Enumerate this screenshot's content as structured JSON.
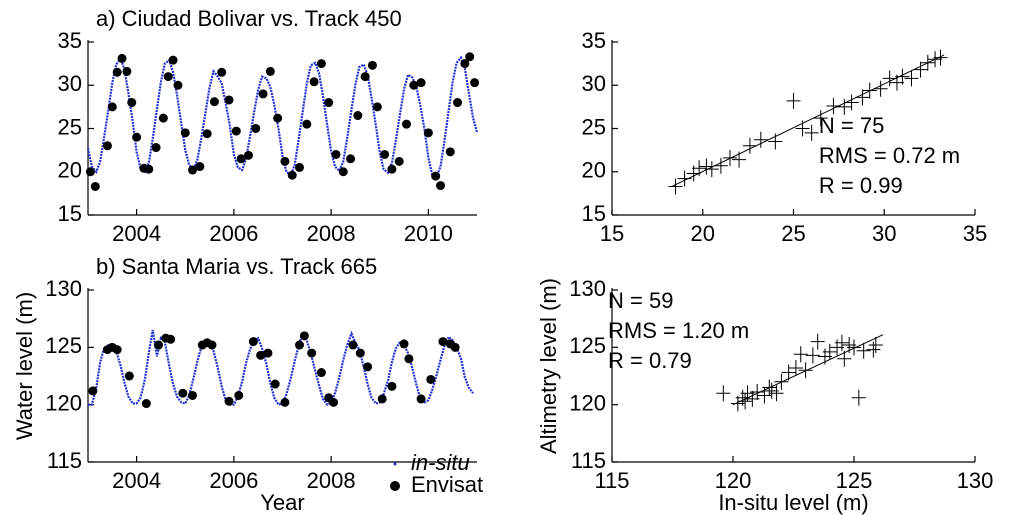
{
  "chart_data": [
    {
      "type": "timeseries",
      "title": "a) Ciudad Bolivar vs. Track 450",
      "xlim": [
        2003,
        2011
      ],
      "xticks": [
        2004,
        2006,
        2008,
        2010
      ],
      "ylim": [
        15,
        35
      ],
      "yticks": [
        15,
        20,
        25,
        30,
        35
      ],
      "series": [
        {
          "kind": "line",
          "color": "#1f2fd6",
          "x": [
            2003.0,
            2003.08,
            2003.17,
            2003.25,
            2003.33,
            2003.42,
            2003.5,
            2003.58,
            2003.67,
            2003.75,
            2003.83,
            2003.92,
            2004.0,
            2004.08,
            2004.17,
            2004.25,
            2004.33,
            2004.42,
            2004.5,
            2004.58,
            2004.67,
            2004.75,
            2004.83,
            2004.92,
            2005.0,
            2005.08,
            2005.17,
            2005.25,
            2005.33,
            2005.42,
            2005.5,
            2005.58,
            2005.67,
            2005.75,
            2005.83,
            2005.92,
            2006.0,
            2006.08,
            2006.17,
            2006.25,
            2006.33,
            2006.42,
            2006.5,
            2006.58,
            2006.67,
            2006.75,
            2006.83,
            2006.92,
            2007.0,
            2007.08,
            2007.17,
            2007.25,
            2007.33,
            2007.42,
            2007.5,
            2007.58,
            2007.67,
            2007.75,
            2007.83,
            2007.92,
            2008.0,
            2008.08,
            2008.17,
            2008.25,
            2008.33,
            2008.42,
            2008.5,
            2008.58,
            2008.67,
            2008.75,
            2008.83,
            2008.92,
            2009.0,
            2009.08,
            2009.17,
            2009.25,
            2009.33,
            2009.42,
            2009.5,
            2009.58,
            2009.67,
            2009.75,
            2009.83,
            2009.92,
            2010.0,
            2010.08,
            2010.17,
            2010.25,
            2010.33,
            2010.42,
            2010.5,
            2010.58,
            2010.67,
            2010.75,
            2010.83,
            2010.92,
            2011.0
          ],
          "values": [
            22.7,
            20.6,
            20.0,
            21.2,
            23.9,
            27.2,
            30.3,
            32.4,
            33.1,
            31.8,
            29.1,
            25.8,
            22.3,
            20.4,
            20.0,
            21.0,
            23.8,
            27.3,
            30.4,
            32.5,
            32.9,
            31.5,
            28.9,
            25.5,
            22.5,
            20.8,
            20.3,
            21.4,
            23.9,
            27.0,
            29.8,
            31.6,
            31.0,
            30.2,
            28.0,
            25.2,
            22.0,
            20.5,
            20.2,
            21.5,
            24.0,
            27.0,
            29.5,
            31.0,
            30.8,
            29.8,
            27.8,
            24.9,
            21.8,
            20.0,
            19.6,
            20.8,
            23.6,
            27.1,
            30.2,
            32.3,
            32.6,
            31.4,
            28.8,
            25.4,
            22.4,
            20.6,
            20.1,
            21.2,
            23.9,
            27.2,
            30.1,
            32.1,
            32.4,
            31.2,
            28.6,
            25.3,
            22.2,
            20.3,
            19.9,
            21.0,
            23.6,
            26.8,
            29.6,
            31.2,
            30.9,
            29.9,
            27.8,
            24.9,
            21.6,
            19.6,
            19.4,
            20.6,
            23.5,
            27.2,
            30.4,
            32.6,
            33.2,
            32.0,
            29.2,
            26.2,
            24.6
          ]
        },
        {
          "kind": "points",
          "color": "#000000",
          "x": [
            2003.05,
            2003.15,
            2003.4,
            2003.5,
            2003.6,
            2003.7,
            2003.8,
            2003.9,
            2004.0,
            2004.15,
            2004.25,
            2004.4,
            2004.55,
            2004.65,
            2004.75,
            2004.85,
            2005.0,
            2005.15,
            2005.3,
            2005.45,
            2005.6,
            2005.75,
            2005.9,
            2006.05,
            2006.15,
            2006.3,
            2006.45,
            2006.6,
            2006.75,
            2006.9,
            2007.05,
            2007.2,
            2007.35,
            2007.5,
            2007.65,
            2007.8,
            2007.95,
            2008.1,
            2008.25,
            2008.4,
            2008.55,
            2008.7,
            2008.85,
            2008.95,
            2009.1,
            2009.25,
            2009.4,
            2009.55,
            2009.7,
            2009.85,
            2010.0,
            2010.15,
            2010.25,
            2010.45,
            2010.6,
            2010.75,
            2010.85,
            2010.95
          ],
          "values": [
            20.0,
            18.3,
            23.0,
            27.5,
            31.5,
            33.1,
            31.6,
            28.0,
            24.0,
            20.4,
            20.3,
            22.8,
            26.2,
            31.0,
            32.9,
            30.0,
            24.5,
            20.2,
            20.6,
            24.4,
            28.1,
            31.5,
            28.3,
            24.7,
            21.5,
            21.9,
            25.0,
            29.0,
            31.6,
            26.2,
            21.2,
            19.6,
            20.5,
            25.5,
            30.4,
            32.5,
            28.0,
            22.0,
            20.0,
            21.5,
            26.5,
            31.0,
            32.3,
            27.5,
            22.0,
            20.3,
            21.2,
            25.5,
            30.0,
            30.3,
            24.5,
            19.5,
            18.4,
            22.3,
            28.0,
            32.5,
            33.3,
            30.3
          ]
        }
      ]
    },
    {
      "type": "timeseries",
      "title": "b) Santa Maria vs. Track 665",
      "xlabel": "Year",
      "ylabel": "Water level (m)",
      "legend": "lower right",
      "xlim": [
        2003,
        2011
      ],
      "xticks": [
        2004,
        2006,
        2008
      ],
      "ylim": [
        115,
        130
      ],
      "yticks": [
        115,
        120,
        125,
        130
      ],
      "series": [
        {
          "kind": "line",
          "name": "in-situ",
          "color": "#1f2fd6",
          "x": [
            2003.0,
            2003.08,
            2003.17,
            2003.25,
            2003.33,
            2003.42,
            2003.5,
            2003.58,
            2003.67,
            2003.75,
            2003.83,
            2003.92,
            2004.0,
            2004.08,
            2004.17,
            2004.25,
            2004.33,
            2004.42,
            2004.5,
            2004.58,
            2004.67,
            2004.75,
            2004.83,
            2004.92,
            2005.0,
            2005.08,
            2005.17,
            2005.25,
            2005.33,
            2005.42,
            2005.5,
            2005.58,
            2005.67,
            2005.75,
            2005.83,
            2005.92,
            2006.0,
            2006.08,
            2006.17,
            2006.25,
            2006.33,
            2006.42,
            2006.5,
            2006.58,
            2006.67,
            2006.75,
            2006.83,
            2006.92,
            2007.0,
            2007.08,
            2007.17,
            2007.25,
            2007.33,
            2007.42,
            2007.5,
            2007.58,
            2007.67,
            2007.75,
            2007.83,
            2007.92,
            2008.0,
            2008.08,
            2008.17,
            2008.25,
            2008.33,
            2008.42,
            2008.5,
            2008.58,
            2008.67,
            2008.75,
            2008.83,
            2008.92,
            2009.0,
            2009.08,
            2009.17,
            2009.25,
            2009.33,
            2009.42,
            2009.5,
            2009.58,
            2009.67,
            2009.75,
            2009.83,
            2009.92,
            2010.0,
            2010.08,
            2010.17,
            2010.25,
            2010.33,
            2010.42,
            2010.5,
            2010.58,
            2010.67,
            2010.75,
            2010.83,
            2010.92
          ],
          "values": [
            120.0,
            120.0,
            121.5,
            123.7,
            124.9,
            125.2,
            125.3,
            124.7,
            123.4,
            121.9,
            120.7,
            120.1,
            120.1,
            120.6,
            122.2,
            124.5,
            126.5,
            124.2,
            125.8,
            125.5,
            123.4,
            121.8,
            120.7,
            120.2,
            120.1,
            120.8,
            122.3,
            123.8,
            125.0,
            125.5,
            125.4,
            124.7,
            123.2,
            121.6,
            120.4,
            120.0,
            120.0,
            120.7,
            122.0,
            123.6,
            124.8,
            125.6,
            125.8,
            124.9,
            123.5,
            121.9,
            120.6,
            120.0,
            120.1,
            120.9,
            122.3,
            123.8,
            125.1,
            126.3,
            125.6,
            124.5,
            123.0,
            121.7,
            120.5,
            120.0,
            120.2,
            121.0,
            122.4,
            123.9,
            125.2,
            126.2,
            125.4,
            124.8,
            123.3,
            121.8,
            120.6,
            120.1,
            120.2,
            120.9,
            122.1,
            123.7,
            124.9,
            125.5,
            125.2,
            124.5,
            123.2,
            121.8,
            120.6,
            120.2,
            120.4,
            121.3,
            122.6,
            123.9,
            125.1,
            125.9,
            125.6,
            125.0,
            124.0,
            122.4,
            121.5,
            121.0
          ]
        },
        {
          "kind": "points",
          "name": "Envisat",
          "color": "#000000",
          "x": [
            2003.1,
            2003.4,
            2003.5,
            2003.6,
            2003.85,
            2004.2,
            2004.45,
            2004.6,
            2004.7,
            2004.95,
            2005.15,
            2005.35,
            2005.45,
            2005.55,
            2005.9,
            2006.1,
            2006.4,
            2006.55,
            2006.7,
            2006.85,
            2007.05,
            2007.35,
            2007.45,
            2007.6,
            2007.8,
            2007.95,
            2008.05,
            2008.45,
            2008.6,
            2008.75,
            2009.05,
            2009.25,
            2009.5,
            2009.6,
            2009.85,
            2010.05,
            2010.3,
            2010.45,
            2010.55
          ],
          "values": [
            121.2,
            124.8,
            125.0,
            124.8,
            122.5,
            120.1,
            125.2,
            125.8,
            125.7,
            121.0,
            120.8,
            125.2,
            125.4,
            125.2,
            120.3,
            120.8,
            125.5,
            124.3,
            124.5,
            121.8,
            120.2,
            125.2,
            126.0,
            124.5,
            122.8,
            120.6,
            120.2,
            125.2,
            124.5,
            123.3,
            120.5,
            121.6,
            125.3,
            124.0,
            120.5,
            122.2,
            125.5,
            125.3,
            125.0
          ]
        }
      ]
    },
    {
      "type": "scatter",
      "color": "#000000",
      "annotation_corner": "lower right",
      "annotations": [
        "N = 75",
        "RMS = 0.72 m",
        "R = 0.99"
      ],
      "xlim": [
        15,
        35
      ],
      "xticks": [
        15,
        20,
        25,
        30,
        35
      ],
      "ylim": [
        15,
        35
      ],
      "yticks": [
        15,
        20,
        25,
        30,
        35
      ],
      "x": [
        18.5,
        19.0,
        19.5,
        19.8,
        20.2,
        20.5,
        21.0,
        21.5,
        22.0,
        22.6,
        23.2,
        24.0,
        25.0,
        25.5,
        26.0,
        26.5,
        27.2,
        27.8,
        28.2,
        28.8,
        29.2,
        29.8,
        30.3,
        30.7,
        31.0,
        31.5,
        32.0,
        32.4,
        32.8,
        33.1
      ],
      "values": [
        18.3,
        19.2,
        19.8,
        20.4,
        20.6,
        20.3,
        20.7,
        21.6,
        21.4,
        23.0,
        23.7,
        23.5,
        28.2,
        25.0,
        24.5,
        26.2,
        27.6,
        27.5,
        28.0,
        28.6,
        29.4,
        29.6,
        30.8,
        30.3,
        31.0,
        30.8,
        31.8,
        32.6,
        33.0,
        33.2
      ],
      "fit": {
        "x": [
          18.3,
          33.3
        ],
        "values": [
          18.3,
          33.5
        ]
      }
    },
    {
      "type": "scatter",
      "color": "#000000",
      "annotation_corner": "upper left",
      "xlabel": "In-situ level (m)",
      "ylabel": "Altimetry level (m)",
      "annotations": [
        "N = 59",
        "RMS = 1.20 m",
        "R = 0.79"
      ],
      "xlim": [
        115,
        130
      ],
      "xticks": [
        115,
        120,
        125,
        130
      ],
      "ylim": [
        115,
        130
      ],
      "yticks": [
        115,
        120,
        125,
        130
      ],
      "x": [
        119.6,
        120.2,
        120.4,
        120.5,
        120.6,
        120.8,
        121.0,
        121.3,
        121.5,
        121.6,
        121.8,
        122.0,
        122.3,
        122.6,
        122.8,
        123.0,
        123.3,
        123.5,
        123.8,
        124.0,
        124.3,
        124.5,
        124.6,
        124.8,
        125.0,
        125.2,
        125.4,
        125.8,
        125.9
      ],
      "values": [
        121.0,
        120.1,
        120.6,
        120.3,
        121.0,
        120.5,
        121.1,
        120.8,
        121.5,
        121.2,
        121.0,
        122.0,
        122.8,
        123.2,
        124.4,
        123.0,
        124.3,
        125.5,
        124.2,
        124.6,
        125.0,
        125.4,
        124.0,
        125.2,
        125.0,
        120.6,
        124.7,
        124.8,
        125.2
      ],
      "fit": {
        "x": [
          120.0,
          126.2
        ],
        "values": [
          120.0,
          126.1
        ]
      }
    }
  ]
}
